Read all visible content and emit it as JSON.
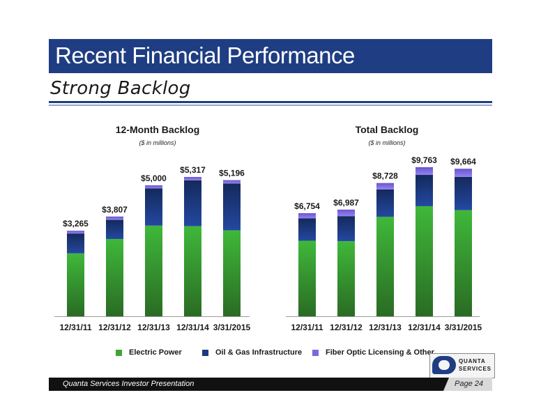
{
  "header": {
    "title": "Recent Financial Performance",
    "subtitle": "Strong Backlog"
  },
  "colors": {
    "title_bar": "#1f3d82",
    "electric_power": "#3fa535",
    "oil_gas": "#1b3a80",
    "fiber_optic": "#7b68e0"
  },
  "chart_data": [
    {
      "type": "bar",
      "stacked": true,
      "title": "12-Month Backlog",
      "subtitle": "($ in millions)",
      "categories": [
        "12/31/11",
        "12/31/12",
        "12/31/13",
        "12/31/14",
        "3/31/2015"
      ],
      "totals": [
        3265,
        3807,
        5000,
        5317,
        5196
      ],
      "total_labels": [
        "$3,265",
        "$3,807",
        "$5,000",
        "$5,317",
        "$5,196"
      ],
      "series": [
        {
          "name": "Electric Power",
          "values": [
            2400,
            2950,
            3460,
            3440,
            3280
          ]
        },
        {
          "name": "Oil & Gas Infrastructure",
          "values": [
            760,
            730,
            1420,
            1750,
            1790
          ]
        },
        {
          "name": "Fiber Optic Licensing & Other",
          "values": [
            105,
            127,
            120,
            127,
            126
          ]
        }
      ],
      "ylim": [
        0,
        5600
      ],
      "grid": false,
      "legend": "bottom"
    },
    {
      "type": "bar",
      "stacked": true,
      "title": "Total Backlog",
      "subtitle": "($ in millions)",
      "categories": [
        "12/31/11",
        "12/31/12",
        "12/31/13",
        "12/31/14",
        "3/31/2015"
      ],
      "totals": [
        6754,
        6987,
        8728,
        9763,
        9664
      ],
      "total_labels": [
        "$6,754",
        "$6,987",
        "$8,728",
        "$9,763",
        "$9,664"
      ],
      "series": [
        {
          "name": "Electric Power",
          "values": [
            4950,
            4920,
            6510,
            7210,
            6950
          ]
        },
        {
          "name": "Oil & Gas Infrastructure",
          "values": [
            1460,
            1640,
            1800,
            2050,
            2180
          ]
        },
        {
          "name": "Fiber Optic Licensing & Other",
          "values": [
            344,
            427,
            418,
            503,
            534
          ]
        }
      ],
      "ylim": [
        0,
        10100
      ],
      "grid": false,
      "legend": "bottom"
    }
  ],
  "legend": [
    {
      "label": "Electric Power",
      "color": "#3fa535"
    },
    {
      "label": "Oil & Gas Infrastructure",
      "color": "#1b3a80"
    },
    {
      "label": "Fiber Optic Licensing & Other",
      "color": "#7b68e0"
    }
  ],
  "logo": {
    "line1": "QUANTA",
    "line2": "SERVICES"
  },
  "footer": {
    "text": "Quanta Services Investor Presentation",
    "page": "Page 24"
  }
}
